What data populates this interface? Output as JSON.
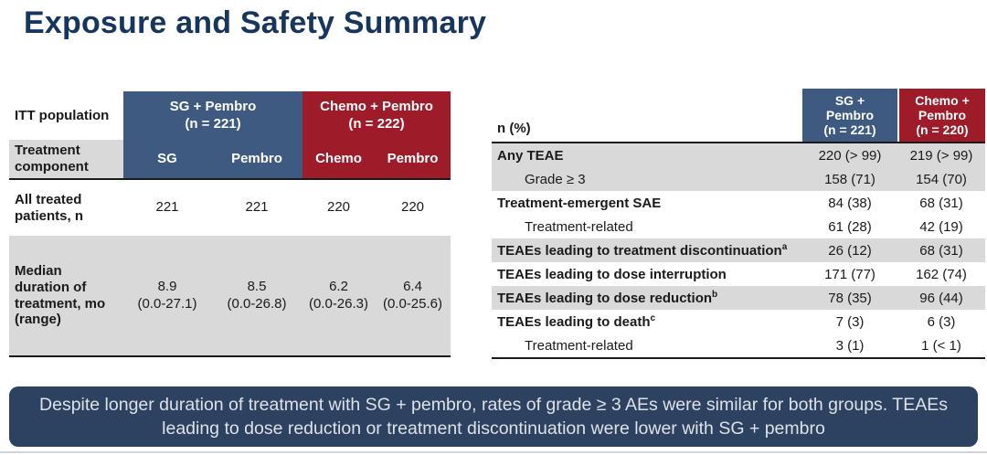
{
  "title": "Exposure and Safety Summary",
  "colors": {
    "title_navy": "#17365d",
    "blue_header": "#3e5a80",
    "red_header": "#9e1b2a",
    "gray_row": "#d9d9d9",
    "banner_bg": "#2d4160",
    "banner_text": "#dde2e8"
  },
  "exposure_table": {
    "corner_top": "ITT population",
    "corner_bottom": "Treatment\ncomponent",
    "group_headers": [
      "SG + Pembro\n(n = 221)",
      "Chemo + Pembro\n(n = 222)"
    ],
    "component_headers": [
      "SG",
      "Pembro",
      "Chemo",
      "Pembro"
    ],
    "rows": [
      {
        "label": "All treated\npatients, n",
        "values": [
          "221",
          "221",
          "220",
          "220"
        ]
      },
      {
        "label": "Median\nduration of\ntreatment, mo\n(range)",
        "values": [
          "8.9\n(0.0-27.1)",
          "8.5\n(0.0-26.8)",
          "6.2\n(0.0-26.3)",
          "6.4\n(0.0-25.6)"
        ]
      }
    ]
  },
  "safety_table": {
    "header_label": "n (%)",
    "columns": [
      "SG +\nPembro\n(n = 221)",
      "Chemo +\nPembro\n(n = 220)"
    ],
    "rows": [
      {
        "label": "Any TEAE",
        "sup": "",
        "values": [
          "220 (> 99)",
          "219 (> 99)"
        ]
      },
      {
        "label": "Grade ≥ 3",
        "sup": "",
        "values": [
          "158 (71)",
          "154 (70)"
        ]
      },
      {
        "label": "Treatment-emergent SAE",
        "sup": "",
        "values": [
          "84 (38)",
          "68 (31)"
        ]
      },
      {
        "label": "Treatment-related",
        "sup": "",
        "values": [
          "61 (28)",
          "42 (19)"
        ]
      },
      {
        "label": "TEAEs leading to treatment discontinuation",
        "sup": "a",
        "values": [
          "26 (12)",
          "68 (31)"
        ]
      },
      {
        "label": "TEAEs leading to dose interruption",
        "sup": "",
        "values": [
          "171 (77)",
          "162 (74)"
        ]
      },
      {
        "label": "TEAEs leading to dose reduction",
        "sup": "b",
        "values": [
          "78 (35)",
          "96 (44)"
        ]
      },
      {
        "label": "TEAEs leading to death",
        "sup": "c",
        "values": [
          "7 (3)",
          "6 (3)"
        ]
      },
      {
        "label": "Treatment-related",
        "sup": "",
        "values": [
          "3 (1)",
          "1 (< 1)"
        ]
      }
    ]
  },
  "banner": {
    "text": "Despite longer duration of treatment with SG + pembro, rates of grade ≥ 3 AEs were similar for both groups. TEAEs leading to dose reduction or treatment discontinuation were lower with SG + pembro"
  }
}
